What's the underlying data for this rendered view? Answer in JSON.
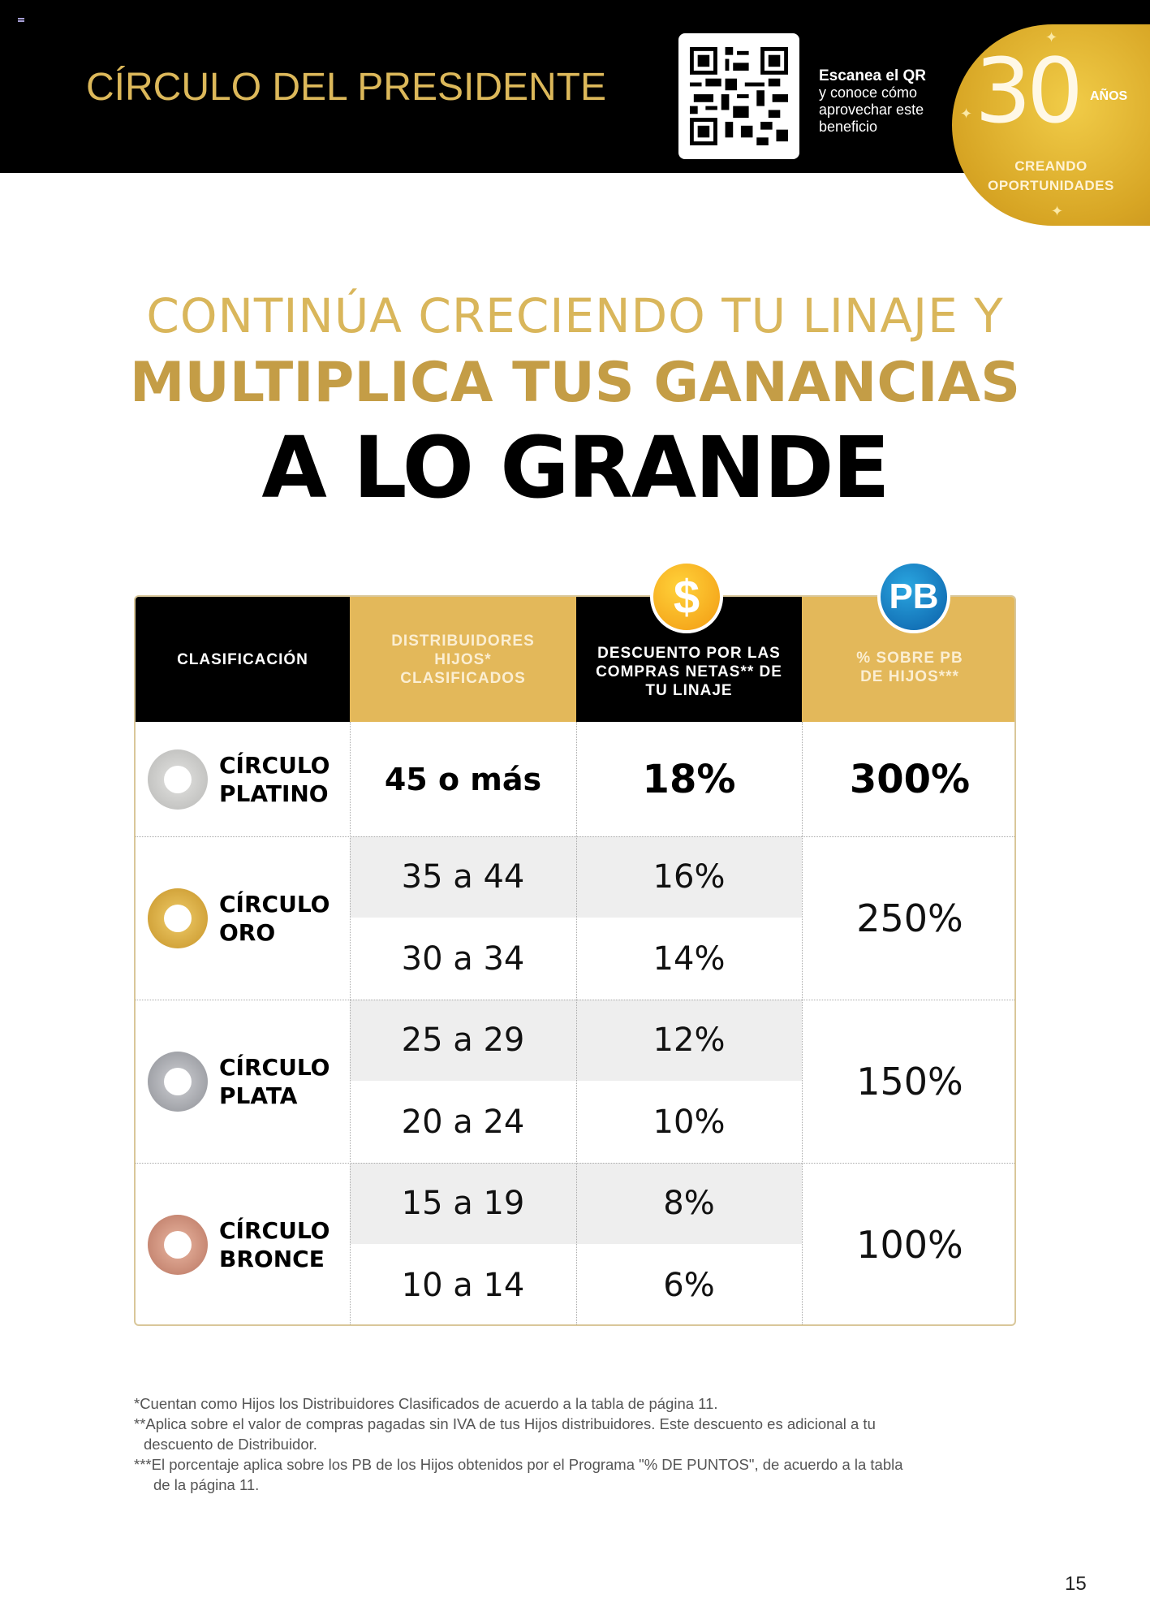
{
  "header": {
    "title": "CÍRCULO DEL PRESIDENTE",
    "qr_title": "Escanea el QR",
    "qr_text": [
      "y conoce cómo",
      "aprovechar este",
      "beneficio"
    ],
    "badge": {
      "number": "30",
      "years": "AÑOS",
      "line1": "CREANDO",
      "line2": "OPORTUNIDADES"
    }
  },
  "headline": {
    "line1": "CONTINÚA CRECIENDO TU LINAJE Y",
    "line2": "MULTIPLICA TUS GANANCIAS",
    "line3": "A LO GRANDE"
  },
  "table": {
    "headers": [
      "CLASIFICACIÓN",
      "DISTRIBUIDORES HIJOS* CLASIFICADOS",
      "DESCUENTO POR LAS COMPRAS NETAS** DE TU LINAJE",
      "% SOBRE PB DE HIJOS***"
    ],
    "icons": {
      "discount": "$",
      "pb": "PB"
    },
    "rows": [
      {
        "name": [
          "CÍRCULO",
          "PLATINO"
        ],
        "color": "#c9c9c7",
        "tiers": [
          {
            "hijos": "45 o más",
            "descuento": "18%"
          }
        ],
        "pb": "300%"
      },
      {
        "name": [
          "CÍRCULO",
          "ORO"
        ],
        "color": "#d8ab3c",
        "tiers": [
          {
            "hijos": "35 a 44",
            "descuento": "16%"
          },
          {
            "hijos": "30 a 34",
            "descuento": "14%"
          }
        ],
        "pb": "250%"
      },
      {
        "name": [
          "CÍRCULO",
          "PLATA"
        ],
        "color": "#a4a6ab",
        "tiers": [
          {
            "hijos": "25 a 29",
            "descuento": "12%"
          },
          {
            "hijos": "20 a 24",
            "descuento": "10%"
          }
        ],
        "pb": "150%"
      },
      {
        "name": [
          "CÍRCULO",
          "BRONCE"
        ],
        "color": "#cf8f7a",
        "tiers": [
          {
            "hijos": "15 a 19",
            "descuento": "8%"
          },
          {
            "hijos": "10 a 14",
            "descuento": "6%"
          }
        ],
        "pb": "100%"
      }
    ]
  },
  "footnotes": [
    "*Cuentan como Hijos los Distribuidores Clasificados de acuerdo a la tabla de página 11.",
    "**Aplica sobre el valor de compras pagadas sin IVA de tus Hijos distribuidores. Este descuento es adicional a tu",
    "descuento de Distribuidor.",
    "***El porcentaje aplica sobre los PB de los Hijos obtenidos por el Programa \"% DE PUNTOS\", de acuerdo a la tabla",
    "de la página 11."
  ],
  "page_number": "15"
}
